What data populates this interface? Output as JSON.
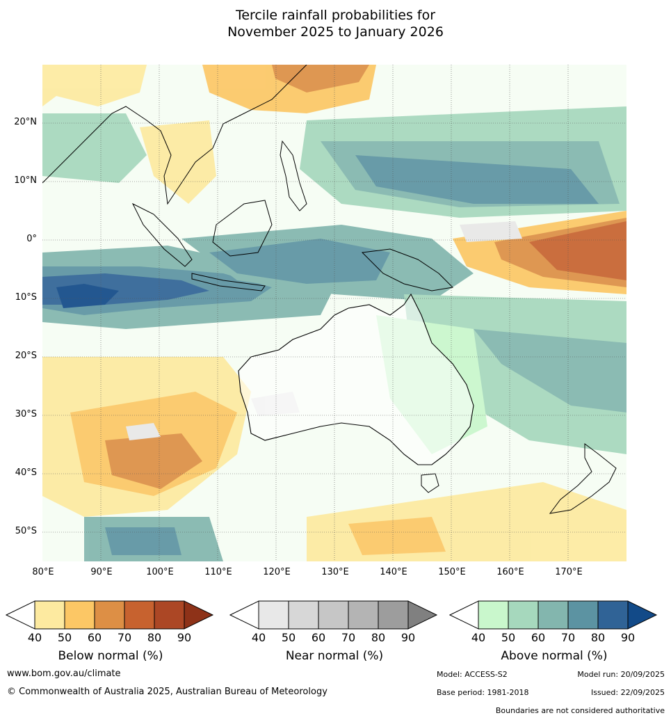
{
  "title": {
    "line1": "Tercile rainfall probabilities for",
    "line2": "November 2025 to January 2026"
  },
  "axes": {
    "lat_labels": [
      "20°N",
      "10°N",
      "0°",
      "10°S",
      "20°S",
      "30°S",
      "40°S",
      "50°S"
    ],
    "lon_labels": [
      "80°E",
      "90°E",
      "100°E",
      "110°E",
      "120°E",
      "130°E",
      "140°E",
      "150°E",
      "160°E",
      "170°E"
    ],
    "lat_range": [
      -55,
      30
    ],
    "lon_range": [
      80,
      180
    ]
  },
  "legends": [
    {
      "label": "Below normal (%)",
      "ticks": [
        "40",
        "50",
        "60",
        "70",
        "80",
        "90"
      ],
      "colors": [
        "#ffffff",
        "#fdeaa0",
        "#fcc765",
        "#dd8f45",
        "#c7622f",
        "#ac4725",
        "#8e3218"
      ]
    },
    {
      "label": "Near normal (%)",
      "ticks": [
        "40",
        "50",
        "60",
        "70",
        "80",
        "90"
      ],
      "colors": [
        "#ffffff",
        "#e8e8e8",
        "#d7d7d7",
        "#c6c6c6",
        "#b4b4b4",
        "#9d9d9d",
        "#808080"
      ]
    },
    {
      "label": "Above normal (%)",
      "ticks": [
        "40",
        "50",
        "60",
        "70",
        "80",
        "90"
      ],
      "colors": [
        "#ffffff",
        "#c9f7cc",
        "#a6d8bd",
        "#83b6ae",
        "#5c93a2",
        "#306396",
        "#124a88"
      ]
    }
  ],
  "footer": {
    "url": "www.bom.gov.au/climate",
    "copyright": "© Commonwealth of Australia 2025, Australian Bureau of Meteorology",
    "model": "Model: ACCESS-S2",
    "model_run": "Model run: 20/09/2025",
    "base_period": "Base period: 1981-2018",
    "issued": "Issued: 22/09/2025",
    "disclaimer": "Boundaries are not considered authoritative"
  }
}
